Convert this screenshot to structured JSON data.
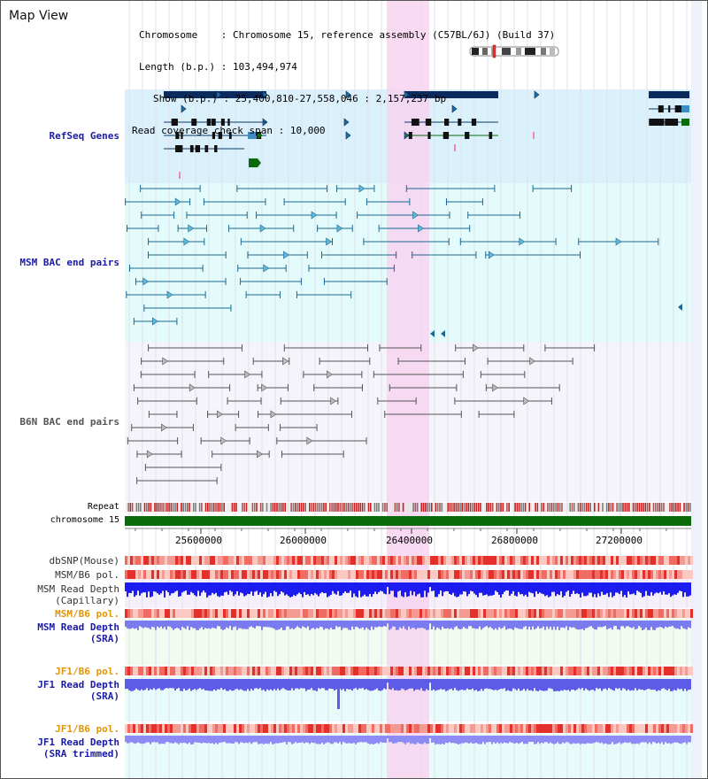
{
  "title": "Map View",
  "header": {
    "chromosome_key": "Chromosome",
    "chromosome_val": ": Chromosome 15, reference assembly (C57BL/6J) (Build 37)",
    "length_key": "Length (b.p.)",
    "length_val": ": 103,494,974",
    "show_key": "Show (b.p.)",
    "show_val": ": 25,400,810-27,558,046 : 2,157,237 bp",
    "coverage_key": "Read coverage check span",
    "coverage_val": ": 10,000"
  },
  "tracks": {
    "refseq": "RefSeq Genes",
    "msm_bac": "MSM BAC end pairs",
    "b6n_bac": "B6N BAC end pairs",
    "repeat": "Repeat",
    "chromosome": "chromosome 15",
    "dbsnp": "dbSNP(Mouse)",
    "msm_b6_pol_1": "MSM/B6 pol.",
    "msm_depth_cap_1": "MSM Read Depth",
    "msm_depth_cap_2": "(Capillary)",
    "msm_b6_pol_2": "MSM/B6 pol.",
    "msm_depth_sra_1": "MSM Read Depth",
    "msm_depth_sra_2": "(SRA)",
    "jf1_b6_pol_1": "JF1/B6 pol.",
    "jf1_depth_sra_1": "JF1 Read Depth",
    "jf1_depth_sra_2": "(SRA)",
    "jf1_b6_pol_2": "JF1/B6 pol.",
    "jf1_depth_trim_1": "JF1 Read Depth",
    "jf1_depth_trim_2": "(SRA trimmed)"
  },
  "ruler_ticks": [
    "25600000",
    "26000000",
    "26400000",
    "26800000",
    "27200000"
  ],
  "colors": {
    "refseq_bg": "#daf0fb",
    "msm_bg": "#e4fbfb",
    "b6n_bg": "#f4f4fa",
    "highlight": "#f7d3f0",
    "gene_dark": "#0b2a5e",
    "chrom_green": "#0a6b0a",
    "label_blue": "#1a1aa8",
    "label_orange": "#e0960a"
  }
}
